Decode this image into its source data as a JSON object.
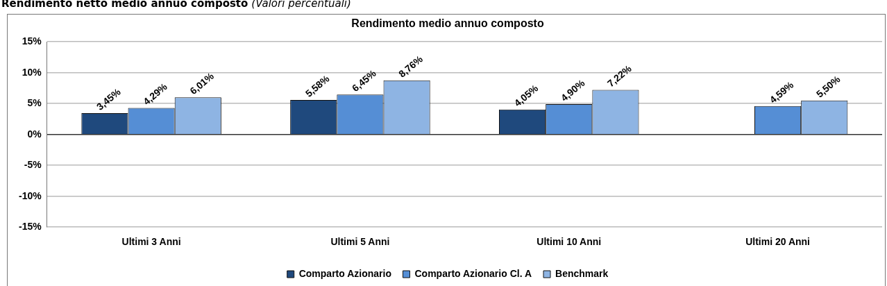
{
  "chart_data": {
    "type": "bar",
    "title": "Rendimento medio annuo composto",
    "annotations": [
      "Rendimento netto medio annuo composto",
      "(Valori percentuali)"
    ],
    "categories": [
      "Ultimi 3 Anni",
      "Ultimi 5 Anni",
      "Ultimi 10 Anni",
      "Ultimi 20 Anni"
    ],
    "series": [
      {
        "name": "Comparto Azionario",
        "color": "#1f497d",
        "values": [
          3.45,
          5.58,
          4.05,
          null
        ],
        "value_labels": [
          "3,45%",
          "5,58%",
          "4,05%",
          null
        ]
      },
      {
        "name": "Comparto Azionario Cl. A",
        "color": "#558ed5",
        "values": [
          4.29,
          6.45,
          4.9,
          4.59
        ],
        "value_labels": [
          "4,29%",
          "6,45%",
          "4,90%",
          "4,59%"
        ]
      },
      {
        "name": "Benchmark",
        "color": "#8eb4e3",
        "values": [
          6.01,
          8.76,
          7.22,
          5.5
        ],
        "value_labels": [
          "6,01%",
          "8,76%",
          "7,22%",
          "5,50%"
        ]
      }
    ],
    "ylim": [
      -15,
      15
    ],
    "yticks": [
      {
        "value": -15,
        "label": "-15%"
      },
      {
        "value": -10,
        "label": "-10%"
      },
      {
        "value": -5,
        "label": "-5%"
      },
      {
        "value": 0,
        "label": "0%"
      },
      {
        "value": 5,
        "label": "5%"
      },
      {
        "value": 10,
        "label": "10%"
      },
      {
        "value": 15,
        "label": "15%"
      }
    ],
    "grid": "y",
    "legend": "bottom"
  }
}
